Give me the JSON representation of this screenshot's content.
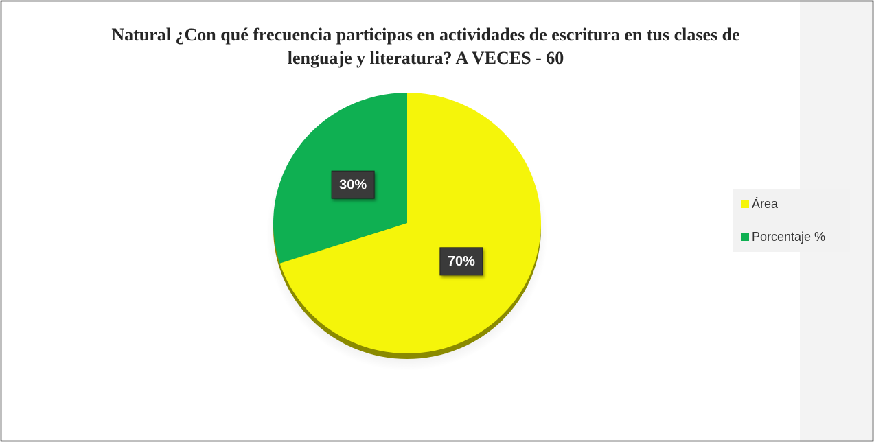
{
  "chart_data": {
    "type": "pie",
    "title": "Natural ¿Con qué frecuencia participas en actividades de escritura en tus clases de lenguaje y literatura? A VECES - 60",
    "categories": [
      "Área",
      "Porcentaje %"
    ],
    "values": [
      70,
      30
    ],
    "value_labels": [
      "70%",
      "30%"
    ],
    "colors": [
      "#f5f50a",
      "#0fb052"
    ],
    "legend": "right"
  }
}
